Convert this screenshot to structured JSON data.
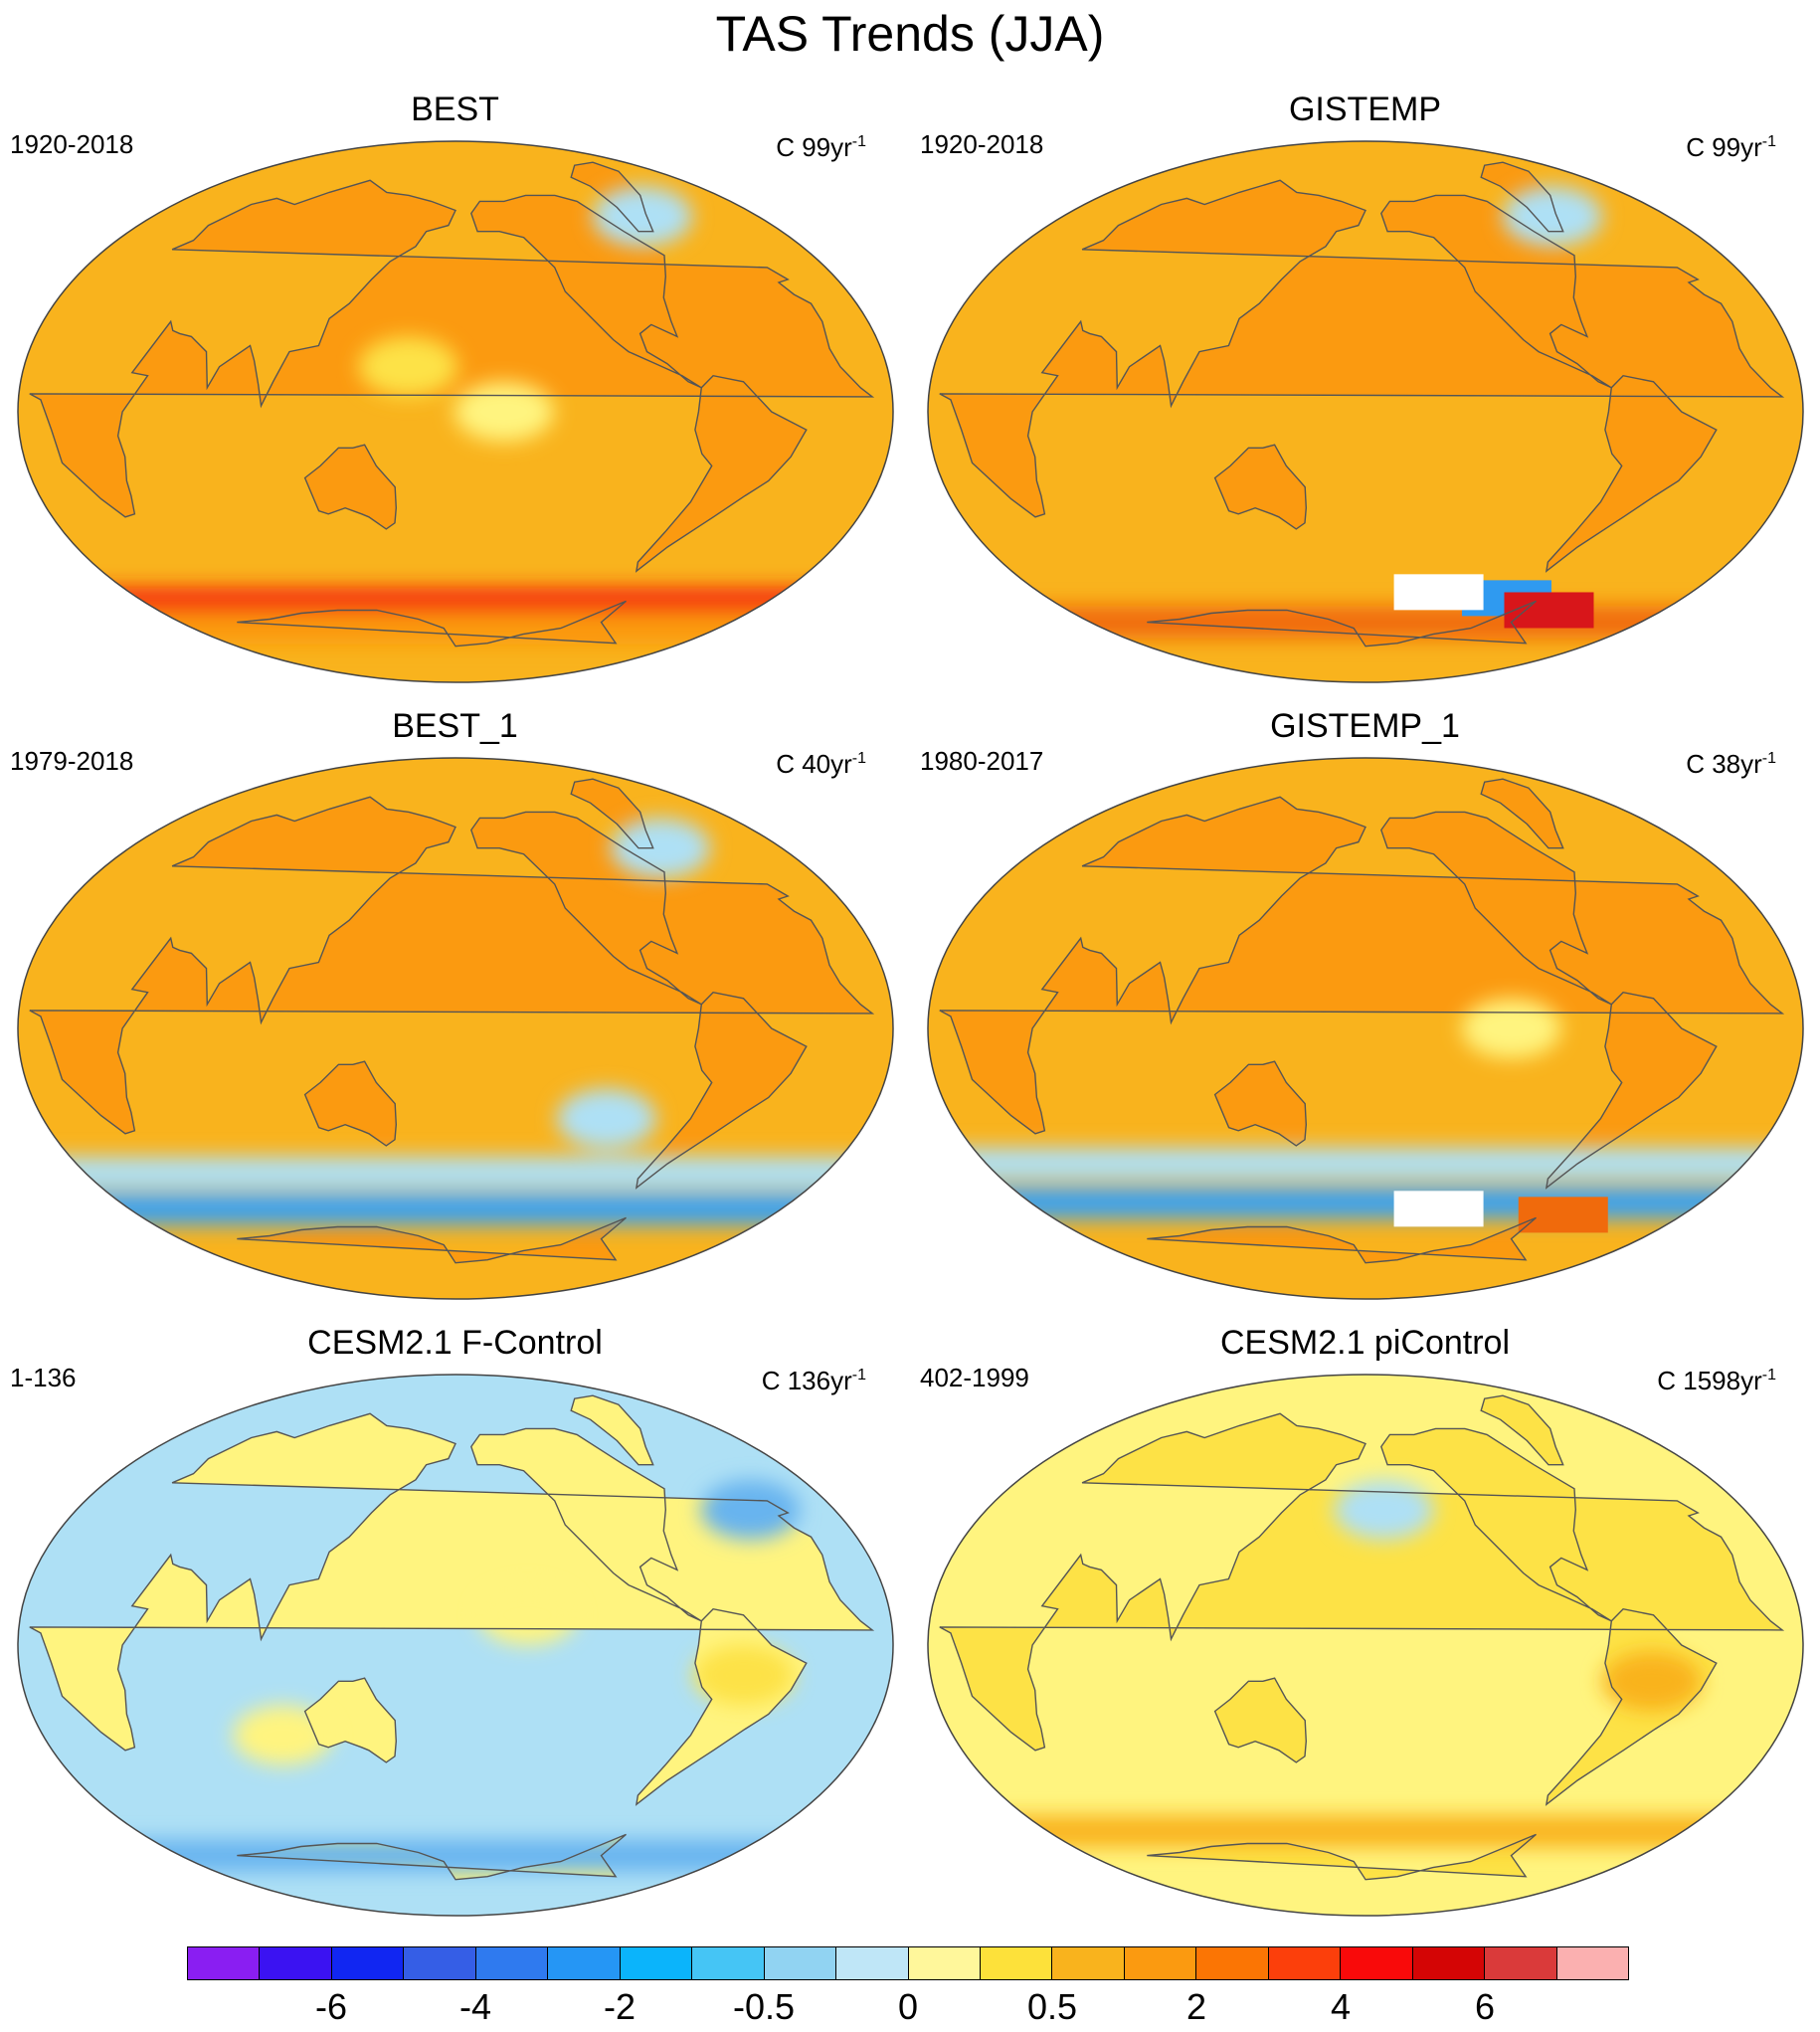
{
  "figure": {
    "title": "TAS Trends (JJA)"
  },
  "panels": [
    {
      "title": "BEST",
      "period": "1920-2018",
      "units_prefix": "C 99yr",
      "units_sup": "-1",
      "ocean_base": "#f9b31d",
      "land_base": "#fb9a10",
      "features": [
        {
          "kind": "band",
          "lat": -64,
          "color": "#f5270a"
        },
        {
          "kind": "band",
          "lat": -72,
          "color": "#fb9a10"
        },
        {
          "kind": "spot",
          "lon": -40,
          "lat": 65,
          "color": "#aee0f5"
        },
        {
          "kind": "spot",
          "lon": -160,
          "lat": 0,
          "color": "#fff47f"
        },
        {
          "kind": "spot",
          "lon": 160,
          "lat": 15,
          "color": "#fde246"
        }
      ]
    },
    {
      "title": "GISTEMP",
      "period": "1920-2018",
      "units_prefix": "C 99yr",
      "units_sup": "-1",
      "ocean_base": "#f9b31d",
      "land_base": "#fb9a10",
      "features": [
        {
          "kind": "band",
          "lat": -70,
          "color": "#f06a0c"
        },
        {
          "kind": "patch",
          "lon": -80,
          "lat": -62,
          "color": "#2f9af0"
        },
        {
          "kind": "patch",
          "lon": -40,
          "lat": -66,
          "color": "#d8161a"
        },
        {
          "kind": "patch",
          "lon": -130,
          "lat": -60,
          "color": "#ffffff"
        },
        {
          "kind": "spot",
          "lon": -40,
          "lat": 65,
          "color": "#aee0f5"
        }
      ]
    },
    {
      "title": "BEST_1",
      "period": "1979-2018",
      "units_prefix": "C 40yr",
      "units_sup": "-1",
      "ocean_base": "#f9b31d",
      "land_base": "#fb9a10",
      "features": [
        {
          "kind": "band",
          "lat": -60,
          "color": "#3aa2f0"
        },
        {
          "kind": "band",
          "lat": -48,
          "color": "#aee0f5"
        },
        {
          "kind": "spot",
          "lon": -110,
          "lat": -30,
          "color": "#aee0f5"
        },
        {
          "kind": "spot",
          "lon": -40,
          "lat": 60,
          "color": "#aee0f5"
        }
      ]
    },
    {
      "title": "GISTEMP_1",
      "period": "1980-2017",
      "units_prefix": "C 38yr",
      "units_sup": "-1",
      "ocean_base": "#f9b31d",
      "land_base": "#fb9a10",
      "features": [
        {
          "kind": "band",
          "lat": -58,
          "color": "#3aa2f0"
        },
        {
          "kind": "band",
          "lat": -45,
          "color": "#aee0f5"
        },
        {
          "kind": "spot",
          "lon": -120,
          "lat": 0,
          "color": "#fff47f"
        },
        {
          "kind": "patch",
          "lon": -130,
          "lat": -60,
          "color": "#ffffff"
        },
        {
          "kind": "patch",
          "lon": -40,
          "lat": -62,
          "color": "#f06a0c"
        }
      ]
    },
    {
      "title": "CESM2.1 F-Control",
      "period": "1-136",
      "units_prefix": "C 136yr",
      "units_sup": "-1",
      "ocean_base": "#aee0f5",
      "land_base": "#fff47f",
      "features": [
        {
          "kind": "spot",
          "lon": -150,
          "lat": 10,
          "color": "#fff47f"
        },
        {
          "kind": "spot",
          "lon": 100,
          "lat": -30,
          "color": "#fff47f"
        },
        {
          "kind": "spot",
          "lon": -60,
          "lat": -10,
          "color": "#fde246"
        },
        {
          "kind": "spot",
          "lon": -20,
          "lat": 45,
          "color": "#68b4ef"
        },
        {
          "kind": "band",
          "lat": -70,
          "color": "#68b4ef"
        }
      ]
    },
    {
      "title": "CESM2.1 piControl",
      "period": "402-1999",
      "units_prefix": "C 1598yr",
      "units_sup": "-1",
      "ocean_base": "#fff47f",
      "land_base": "#fde246",
      "features": [
        {
          "kind": "band",
          "lat": -62,
          "color": "#f9b31d"
        },
        {
          "kind": "spot",
          "lon": -170,
          "lat": 45,
          "color": "#aee0f5"
        },
        {
          "kind": "spot",
          "lon": -60,
          "lat": -12,
          "color": "#f9b31d"
        }
      ]
    }
  ],
  "colorbar": {
    "colors": [
      "#8a1ef2",
      "#3b12f2",
      "#1126f2",
      "#355ee6",
      "#2f7aef",
      "#2596f5",
      "#0bb4fb",
      "#45c5f5",
      "#91d3f2",
      "#bfe6f7",
      "#fff79b",
      "#fde13a",
      "#f9b31d",
      "#fb9a10",
      "#fb7504",
      "#fc3f0b",
      "#f90a0a",
      "#d40505",
      "#da3a3a",
      "#fbb0b0"
    ],
    "labels": [
      "-6",
      "-4",
      "-2",
      "-0.5",
      "0",
      "0.5",
      "2",
      "4",
      "6"
    ],
    "label_boundary_index": [
      2,
      4,
      6,
      8,
      10,
      12,
      14,
      16,
      18
    ]
  }
}
